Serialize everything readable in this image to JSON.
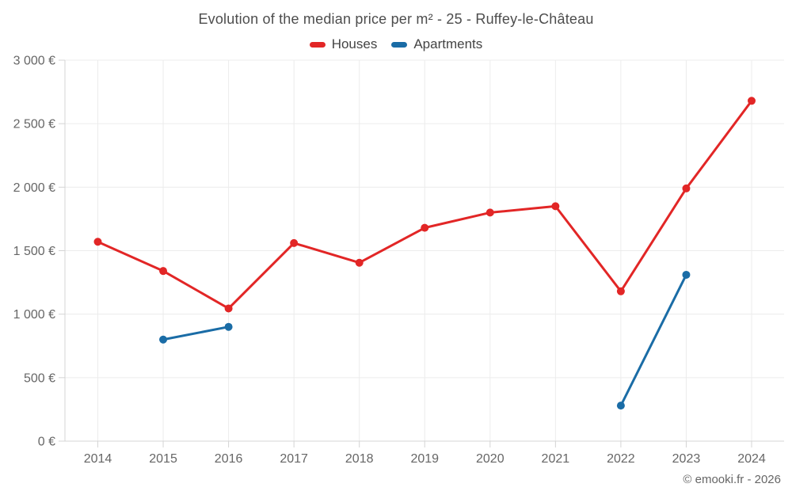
{
  "title": "Evolution of the median price per m² - 25 - Ruffey-le-Château",
  "footer": "© emooki.fr - 2026",
  "colors": {
    "houses": "#e22626",
    "apartments": "#1a6ca6",
    "grid": "#ececec",
    "axis": "#d4d4d4",
    "label_text": "#666666",
    "title_text": "#4d4d4d"
  },
  "chart_data": {
    "type": "line",
    "title": "Evolution of the median price per m² - 25 - Ruffey-le-Château",
    "x": [
      2014,
      2015,
      2016,
      2017,
      2018,
      2019,
      2020,
      2021,
      2022,
      2023,
      2024
    ],
    "series": [
      {
        "name": "Houses",
        "color": "#e22626",
        "values": [
          1570,
          1340,
          1045,
          1560,
          1405,
          1680,
          1800,
          1850,
          1180,
          1990,
          2680
        ]
      },
      {
        "name": "Apartments",
        "color": "#1a6ca6",
        "values": [
          null,
          800,
          900,
          null,
          null,
          null,
          null,
          null,
          280,
          1310,
          null
        ]
      }
    ],
    "xlabel": "",
    "ylabel": "",
    "ylim": [
      0,
      3000
    ],
    "ytick_step": 500,
    "ytick_labels": [
      "0 €",
      "500 €",
      "1 000 €",
      "1 500 €",
      "2 000 €",
      "2 500 €",
      "3 000 €"
    ],
    "grid": true,
    "legend_position": "top"
  }
}
